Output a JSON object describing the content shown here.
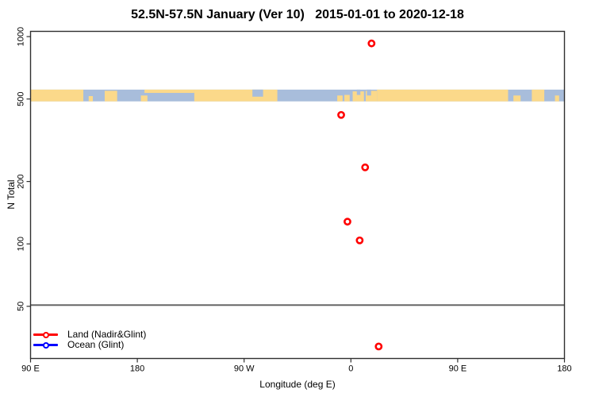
{
  "chart_data": {
    "type": "scatter",
    "title": "52.5N-57.5N January (Ver 10)   2015-01-01 to 2020-12-18",
    "xlabel": "Longitude (deg E)",
    "ylabel": "N Total",
    "yscale": "log",
    "xlim": [
      -270,
      180
    ],
    "ylim": [
      28,
      1060
    ],
    "grid": false,
    "legend_position": "bottom-left-inside",
    "x_ticks": [
      {
        "lon": -270,
        "label": "90 E"
      },
      {
        "lon": -180,
        "label": "180"
      },
      {
        "lon": -90,
        "label": "90 W"
      },
      {
        "lon": 0,
        "label": "0"
      },
      {
        "lon": 90,
        "label": "90 E"
      },
      {
        "lon": 180,
        "label": "180"
      }
    ],
    "y_ticks": [
      "1000",
      "500",
      "200",
      "100",
      "50"
    ],
    "reference_line": {
      "value": 50,
      "color": "#666666"
    },
    "map_band": {
      "description": "land/ocean world strip for 52.5N-57.5N drawn across the N=500 level",
      "value_range": [
        487,
        555
      ],
      "land_color": "#FBD98A",
      "ocean_color": "#A8BDDB",
      "land_segments": [
        {
          "from": -270,
          "to": -225.5
        },
        {
          "from": -221,
          "to": -217.5,
          "frac": 0.45,
          "align": "bottom"
        },
        {
          "from": -207.5,
          "to": -197,
          "frac": 0.9,
          "align": "bottom"
        },
        {
          "from": -177,
          "to": -171.5,
          "frac": 0.5,
          "align": "bottom"
        },
        {
          "from": -174,
          "to": -132,
          "frac": 0.28,
          "align": "top"
        },
        {
          "from": -132,
          "to": -62
        },
        {
          "from": -11.5,
          "to": -7,
          "frac": 0.5,
          "align": "bottom"
        },
        {
          "from": -5.5,
          "to": -1,
          "frac": 0.55,
          "align": "bottom"
        },
        {
          "from": 1.5,
          "to": 11,
          "frac": 0.85,
          "align": "bottom"
        },
        {
          "from": 12.5,
          "to": 22,
          "frac": 0.9,
          "align": "bottom"
        },
        {
          "from": 22,
          "to": 132.5
        },
        {
          "from": 137,
          "to": 143,
          "frac": 0.5,
          "align": "bottom"
        },
        {
          "from": 152.5,
          "to": 163
        },
        {
          "from": 172,
          "to": 175.5,
          "frac": 0.5,
          "align": "bottom"
        }
      ],
      "ocean_patches": [
        {
          "from": -83,
          "to": -74,
          "frac": 0.6,
          "align": "top"
        },
        {
          "from": 5,
          "to": 8,
          "frac": 0.45,
          "align": "top"
        },
        {
          "from": 13.5,
          "to": 17,
          "frac": 0.5,
          "align": "top"
        }
      ]
    },
    "series": [
      {
        "name": "Land (Nadir&Glint)",
        "color": "#FF0000",
        "marker": "open-circle",
        "points": [
          {
            "lon": 17.4,
            "n": 927
          },
          {
            "lon": -8.2,
            "n": 419
          },
          {
            "lon": 12.0,
            "n": 234
          },
          {
            "lon": -2.9,
            "n": 128
          },
          {
            "lon": 7.4,
            "n": 104
          },
          {
            "lon": 23.4,
            "n": 32
          }
        ]
      },
      {
        "name": "Ocean (Glint)",
        "color": "#0000FF",
        "marker": "open-circle",
        "points": []
      }
    ]
  }
}
